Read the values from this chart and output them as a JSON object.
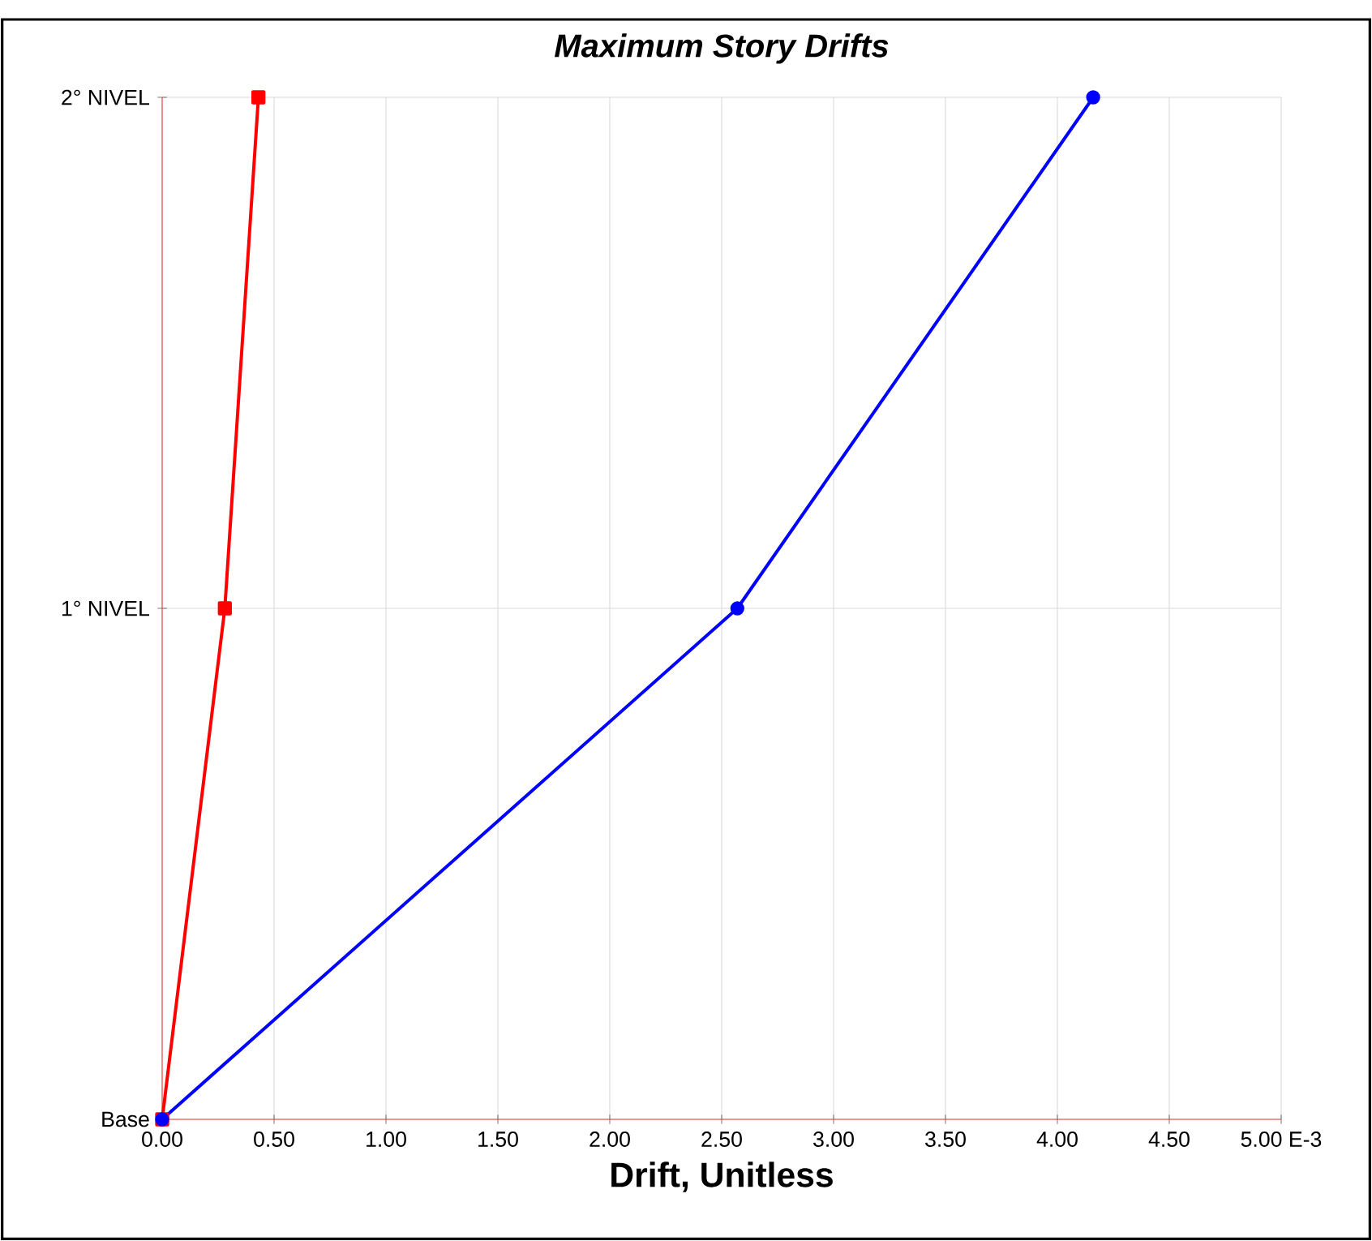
{
  "chart_data": {
    "type": "line",
    "title": "Maximum Story Drifts",
    "xlabel": "Drift, Unitless",
    "orientation": "horizontal",
    "categories": [
      "2° NIVEL",
      "1° NIVEL",
      "Base"
    ],
    "series": [
      {
        "color": "#ff0000",
        "marker": "square",
        "values": [
          0.43,
          0.28,
          0
        ]
      },
      {
        "color": "#0000ff",
        "marker": "circle",
        "values": [
          4.16,
          2.57,
          0
        ]
      }
    ],
    "xlim": [
      0,
      5
    ],
    "xticks": [
      {
        "value": 0,
        "label": "0.00"
      },
      {
        "value": 0.5,
        "label": "0.50"
      },
      {
        "value": 1,
        "label": "1.00"
      },
      {
        "value": 1.5,
        "label": "1.50"
      },
      {
        "value": 2,
        "label": "2.00"
      },
      {
        "value": 2.5,
        "label": "2.50"
      },
      {
        "value": 3,
        "label": "3.00"
      },
      {
        "value": 3.5,
        "label": "3.50"
      },
      {
        "value": 4,
        "label": "4.00"
      },
      {
        "value": 4.5,
        "label": "4.50"
      },
      {
        "value": 5,
        "label": "5.00 E-3"
      }
    ],
    "grid": true
  }
}
